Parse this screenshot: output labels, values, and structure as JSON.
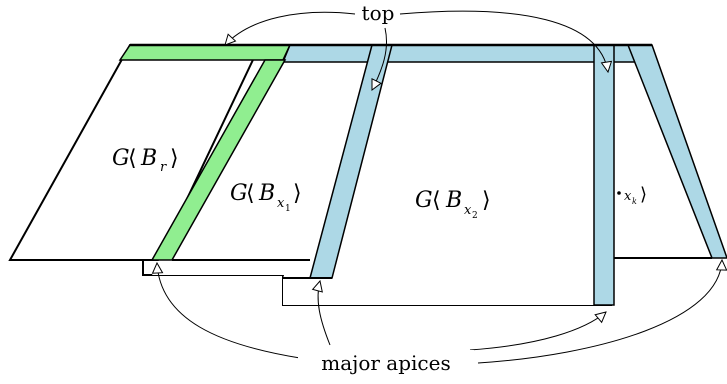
{
  "labels": {
    "top": "top",
    "major_apices": "major apices",
    "br": {
      "G": "G",
      "langle": "⟨",
      "B": "B",
      "sub": "r",
      "rangle": "⟩"
    },
    "bx1": {
      "G": "G",
      "langle": "⟨",
      "B": "B",
      "sub": "x",
      "subsub": "1",
      "rangle": "⟩"
    },
    "bx2": {
      "G": "G",
      "langle": "⟨",
      "B": "B",
      "sub": "x",
      "subsub": "2",
      "rangle": "⟩"
    },
    "bxk": {
      "sub": "x",
      "subsub": "k",
      "rangle": "⟩"
    }
  },
  "colors": {
    "green": "#90ee90",
    "blue": "#add8e6",
    "stroke": "#000000",
    "page": "#ffffff"
  }
}
